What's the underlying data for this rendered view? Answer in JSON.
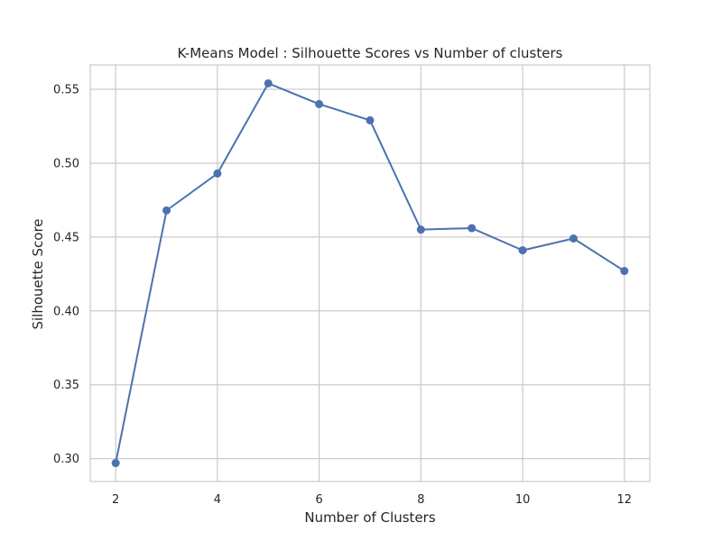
{
  "chart_data": {
    "type": "line",
    "title": "K-Means Model : Silhouette Scores vs Number of clusters",
    "xlabel": "Number of Clusters",
    "ylabel": "Silhouette Score",
    "x": [
      2,
      3,
      4,
      5,
      6,
      7,
      8,
      9,
      10,
      11,
      12
    ],
    "series": [
      {
        "values": [
          0.297,
          0.468,
          0.493,
          0.554,
          0.54,
          0.529,
          0.455,
          0.456,
          0.441,
          0.449,
          0.427
        ]
      }
    ],
    "xlim": [
      1.5,
      12.5
    ],
    "ylim": [
      0.2845,
      0.5665
    ],
    "xticks": [
      2,
      4,
      6,
      8,
      10,
      12
    ],
    "xtick_labels": [
      "2",
      "4",
      "6",
      "8",
      "10",
      "12"
    ],
    "yticks": [
      0.3,
      0.35,
      0.4,
      0.45,
      0.5,
      0.55
    ],
    "ytick_labels": [
      "0.30",
      "0.35",
      "0.40",
      "0.45",
      "0.50",
      "0.55"
    ],
    "grid": true,
    "legend": "none",
    "colors": {
      "line": "#4c72b0",
      "grid": "#cccccc",
      "frame": "#cccccc",
      "text": "#262626"
    }
  }
}
